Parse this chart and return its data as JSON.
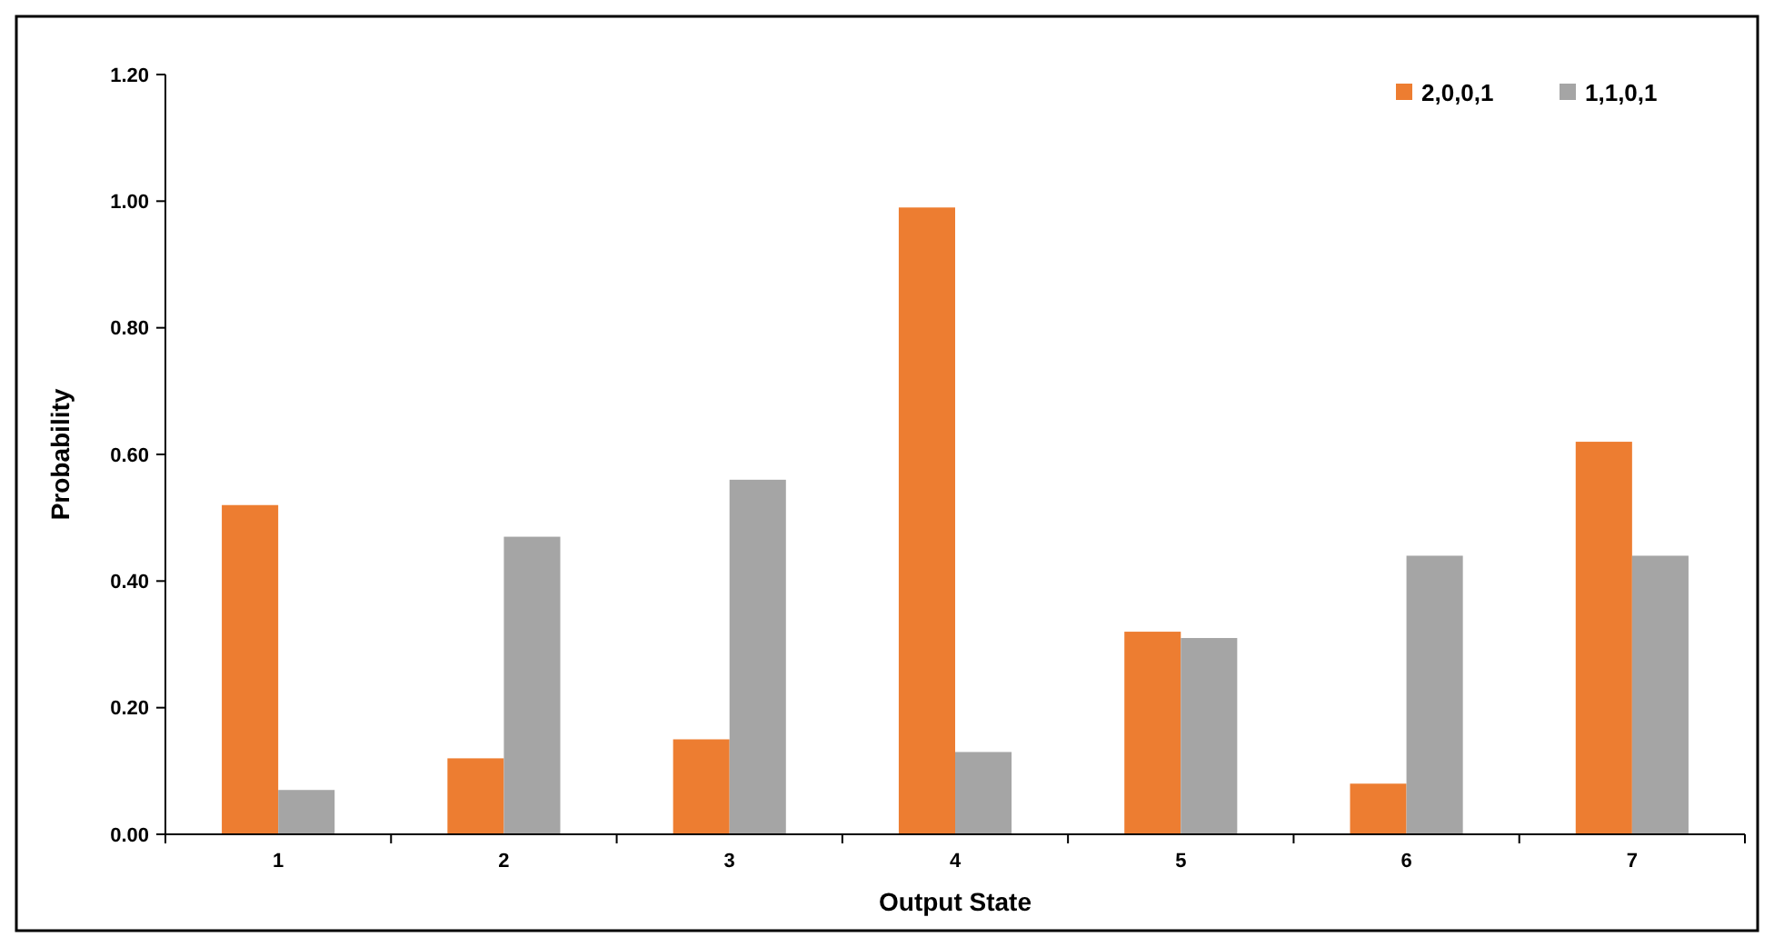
{
  "chart_data": {
    "type": "bar",
    "xlabel": "Output State",
    "ylabel": "Probability",
    "categories": [
      "1",
      "2",
      "3",
      "4",
      "5",
      "6",
      "7"
    ],
    "series": [
      {
        "name": "2,0,0,1",
        "color": "#ed7d31",
        "values": [
          0.52,
          0.12,
          0.15,
          0.99,
          0.32,
          0.08,
          0.62
        ]
      },
      {
        "name": "1,1,0,1",
        "color": "#a5a5a5",
        "values": [
          0.07,
          0.47,
          0.56,
          0.13,
          0.31,
          0.44,
          0.44
        ]
      }
    ],
    "ylim": [
      0,
      1.2
    ],
    "yticks": [
      {
        "value": 0,
        "label": "0.00"
      },
      {
        "value": 0.2,
        "label": "0.20"
      },
      {
        "value": 0.4,
        "label": "0.40"
      },
      {
        "value": 0.6,
        "label": "0.60"
      },
      {
        "value": 0.8,
        "label": "0.80"
      },
      {
        "value": 1,
        "label": "1.00"
      },
      {
        "value": 1.2,
        "label": "1.20"
      }
    ],
    "legend": "top right",
    "grid": false
  }
}
